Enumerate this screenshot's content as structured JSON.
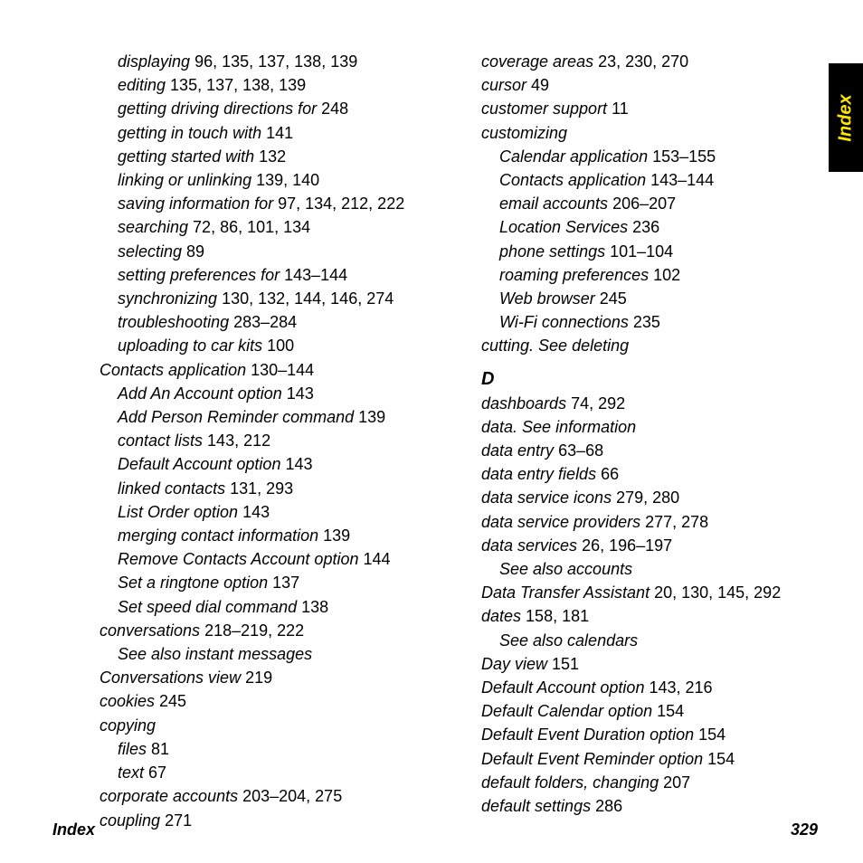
{
  "footer": {
    "label": "Index",
    "page": "329"
  },
  "tab": {
    "label": "Index"
  },
  "col1": [
    {
      "term": "displaying",
      "pages": "96, 135, 137, 138, 139",
      "indent": 1
    },
    {
      "term": "editing",
      "pages": "135, 137, 138, 139",
      "indent": 1
    },
    {
      "term": "getting driving directions for",
      "pages": "248",
      "indent": 1
    },
    {
      "term": "getting in touch with",
      "pages": "141",
      "indent": 1
    },
    {
      "term": "getting started with",
      "pages": "132",
      "indent": 1
    },
    {
      "term": "linking or unlinking",
      "pages": "139, 140",
      "indent": 1
    },
    {
      "term": "saving information for",
      "pages": "97, 134, 212, 222",
      "indent": 1
    },
    {
      "term": "searching",
      "pages": "72, 86, 101, 134",
      "indent": 1
    },
    {
      "term": "selecting",
      "pages": "89",
      "indent": 1
    },
    {
      "term": "setting preferences for",
      "pages": "143–144",
      "indent": 1
    },
    {
      "term": "synchronizing",
      "pages": "130, 132, 144, 146, 274",
      "indent": 1
    },
    {
      "term": "troubleshooting",
      "pages": "283–284",
      "indent": 1
    },
    {
      "term": "uploading to car kits",
      "pages": "100",
      "indent": 1
    },
    {
      "term": "Contacts application",
      "pages": "130–144",
      "indent": 0
    },
    {
      "term": "Add An Account option",
      "pages": "143",
      "indent": 1
    },
    {
      "term": "Add Person Reminder command",
      "pages": "139",
      "indent": 1
    },
    {
      "term": "contact lists",
      "pages": "143, 212",
      "indent": 1
    },
    {
      "term": "Default Account option",
      "pages": "143",
      "indent": 1
    },
    {
      "term": "linked contacts",
      "pages": "131, 293",
      "indent": 1
    },
    {
      "term": "List Order option",
      "pages": "143",
      "indent": 1
    },
    {
      "term": "merging contact information",
      "pages": "139",
      "indent": 1
    },
    {
      "term": "Remove Contacts Account option",
      "pages": "144",
      "indent": 1
    },
    {
      "term": "Set a ringtone option",
      "pages": "137",
      "indent": 1
    },
    {
      "term": "Set speed dial command",
      "pages": "138",
      "indent": 1
    },
    {
      "term": "conversations",
      "pages": "218–219, 222",
      "indent": 0
    },
    {
      "term": "See also instant messages",
      "pages": "",
      "indent": 1
    },
    {
      "term": "Conversations view",
      "pages": "219",
      "indent": 0
    },
    {
      "term": "cookies",
      "pages": "245",
      "indent": 0
    },
    {
      "term": "copying",
      "pages": "",
      "indent": 0
    },
    {
      "term": "files",
      "pages": "81",
      "indent": 1
    },
    {
      "term": "text",
      "pages": "67",
      "indent": 1
    },
    {
      "term": "corporate accounts",
      "pages": "203–204, 275",
      "indent": 0
    },
    {
      "term": "coupling",
      "pages": "271",
      "indent": 0
    }
  ],
  "col2a": [
    {
      "term": "coverage areas",
      "pages": "23, 230, 270",
      "indent": 0
    },
    {
      "term": "cursor",
      "pages": "49",
      "indent": 0
    },
    {
      "term": "customer support",
      "pages": "11",
      "indent": 0
    },
    {
      "term": "customizing",
      "pages": "",
      "indent": 0
    },
    {
      "term": "Calendar application",
      "pages": "153–155",
      "indent": 1
    },
    {
      "term": "Contacts application",
      "pages": "143–144",
      "indent": 1
    },
    {
      "term": "email accounts",
      "pages": "206–207",
      "indent": 1
    },
    {
      "term": "Location Services",
      "pages": "236",
      "indent": 1
    },
    {
      "term": "phone settings",
      "pages": "101–104",
      "indent": 1
    },
    {
      "term": "roaming preferences",
      "pages": "102",
      "indent": 1
    },
    {
      "term": "Web browser",
      "pages": "245",
      "indent": 1
    },
    {
      "term": "Wi-Fi connections",
      "pages": "235",
      "indent": 1
    },
    {
      "term": "cutting. See deleting",
      "pages": "",
      "indent": 0
    }
  ],
  "section": {
    "letter": "D"
  },
  "col2b": [
    {
      "term": "dashboards",
      "pages": "74, 292",
      "indent": 0
    },
    {
      "term": "data. See information",
      "pages": "",
      "indent": 0
    },
    {
      "term": "data entry",
      "pages": "63–68",
      "indent": 0
    },
    {
      "term": "data entry fields",
      "pages": "66",
      "indent": 0
    },
    {
      "term": "data service icons",
      "pages": "279, 280",
      "indent": 0
    },
    {
      "term": "data service providers",
      "pages": "277, 278",
      "indent": 0
    },
    {
      "term": "data services",
      "pages": "26, 196–197",
      "indent": 0
    },
    {
      "term": "See also accounts",
      "pages": "",
      "indent": 1
    },
    {
      "term": "Data Transfer Assistant",
      "pages": "20, 130, 145, 292",
      "indent": 0
    },
    {
      "term": "dates",
      "pages": "158, 181",
      "indent": 0
    },
    {
      "term": "See also calendars",
      "pages": "",
      "indent": 1
    },
    {
      "term": "Day view",
      "pages": "151",
      "indent": 0
    },
    {
      "term": "Default Account option",
      "pages": "143, 216",
      "indent": 0
    },
    {
      "term": "Default Calendar option",
      "pages": "154",
      "indent": 0
    },
    {
      "term": "Default Event Duration option",
      "pages": "154",
      "indent": 0
    },
    {
      "term": "Default Event Reminder option",
      "pages": "154",
      "indent": 0
    },
    {
      "term": "default folders, changing",
      "pages": "207",
      "indent": 0
    },
    {
      "term": "default settings",
      "pages": "286",
      "indent": 0
    }
  ]
}
